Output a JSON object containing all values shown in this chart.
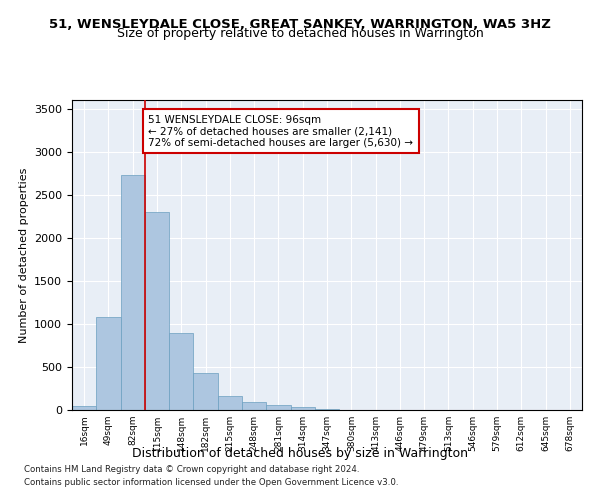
{
  "title": "51, WENSLEYDALE CLOSE, GREAT SANKEY, WARRINGTON, WA5 3HZ",
  "subtitle": "Size of property relative to detached houses in Warrington",
  "xlabel": "Distribution of detached houses by size in Warrington",
  "ylabel": "Number of detached properties",
  "bar_color": "#adc6e0",
  "bar_edge_color": "#6a9fc0",
  "background_color": "#e8eef6",
  "grid_color": "#ffffff",
  "annotation_text": "51 WENSLEYDALE CLOSE: 96sqm\n← 27% of detached houses are smaller (2,141)\n72% of semi-detached houses are larger (5,630) →",
  "vline_x_index": 2,
  "vline_color": "#cc0000",
  "categories": [
    "16sqm",
    "49sqm",
    "82sqm",
    "115sqm",
    "148sqm",
    "182sqm",
    "215sqm",
    "248sqm",
    "281sqm",
    "314sqm",
    "347sqm",
    "380sqm",
    "413sqm",
    "446sqm",
    "479sqm",
    "513sqm",
    "546sqm",
    "579sqm",
    "612sqm",
    "645sqm",
    "678sqm"
  ],
  "values": [
    50,
    1080,
    2730,
    2300,
    900,
    430,
    160,
    90,
    55,
    35,
    10,
    5,
    2,
    0,
    0,
    0,
    0,
    0,
    0,
    0,
    0
  ],
  "ylim": [
    0,
    3600
  ],
  "yticks": [
    0,
    500,
    1000,
    1500,
    2000,
    2500,
    3000,
    3500
  ],
  "footer1": "Contains HM Land Registry data © Crown copyright and database right 2024.",
  "footer2": "Contains public sector information licensed under the Open Government Licence v3.0."
}
